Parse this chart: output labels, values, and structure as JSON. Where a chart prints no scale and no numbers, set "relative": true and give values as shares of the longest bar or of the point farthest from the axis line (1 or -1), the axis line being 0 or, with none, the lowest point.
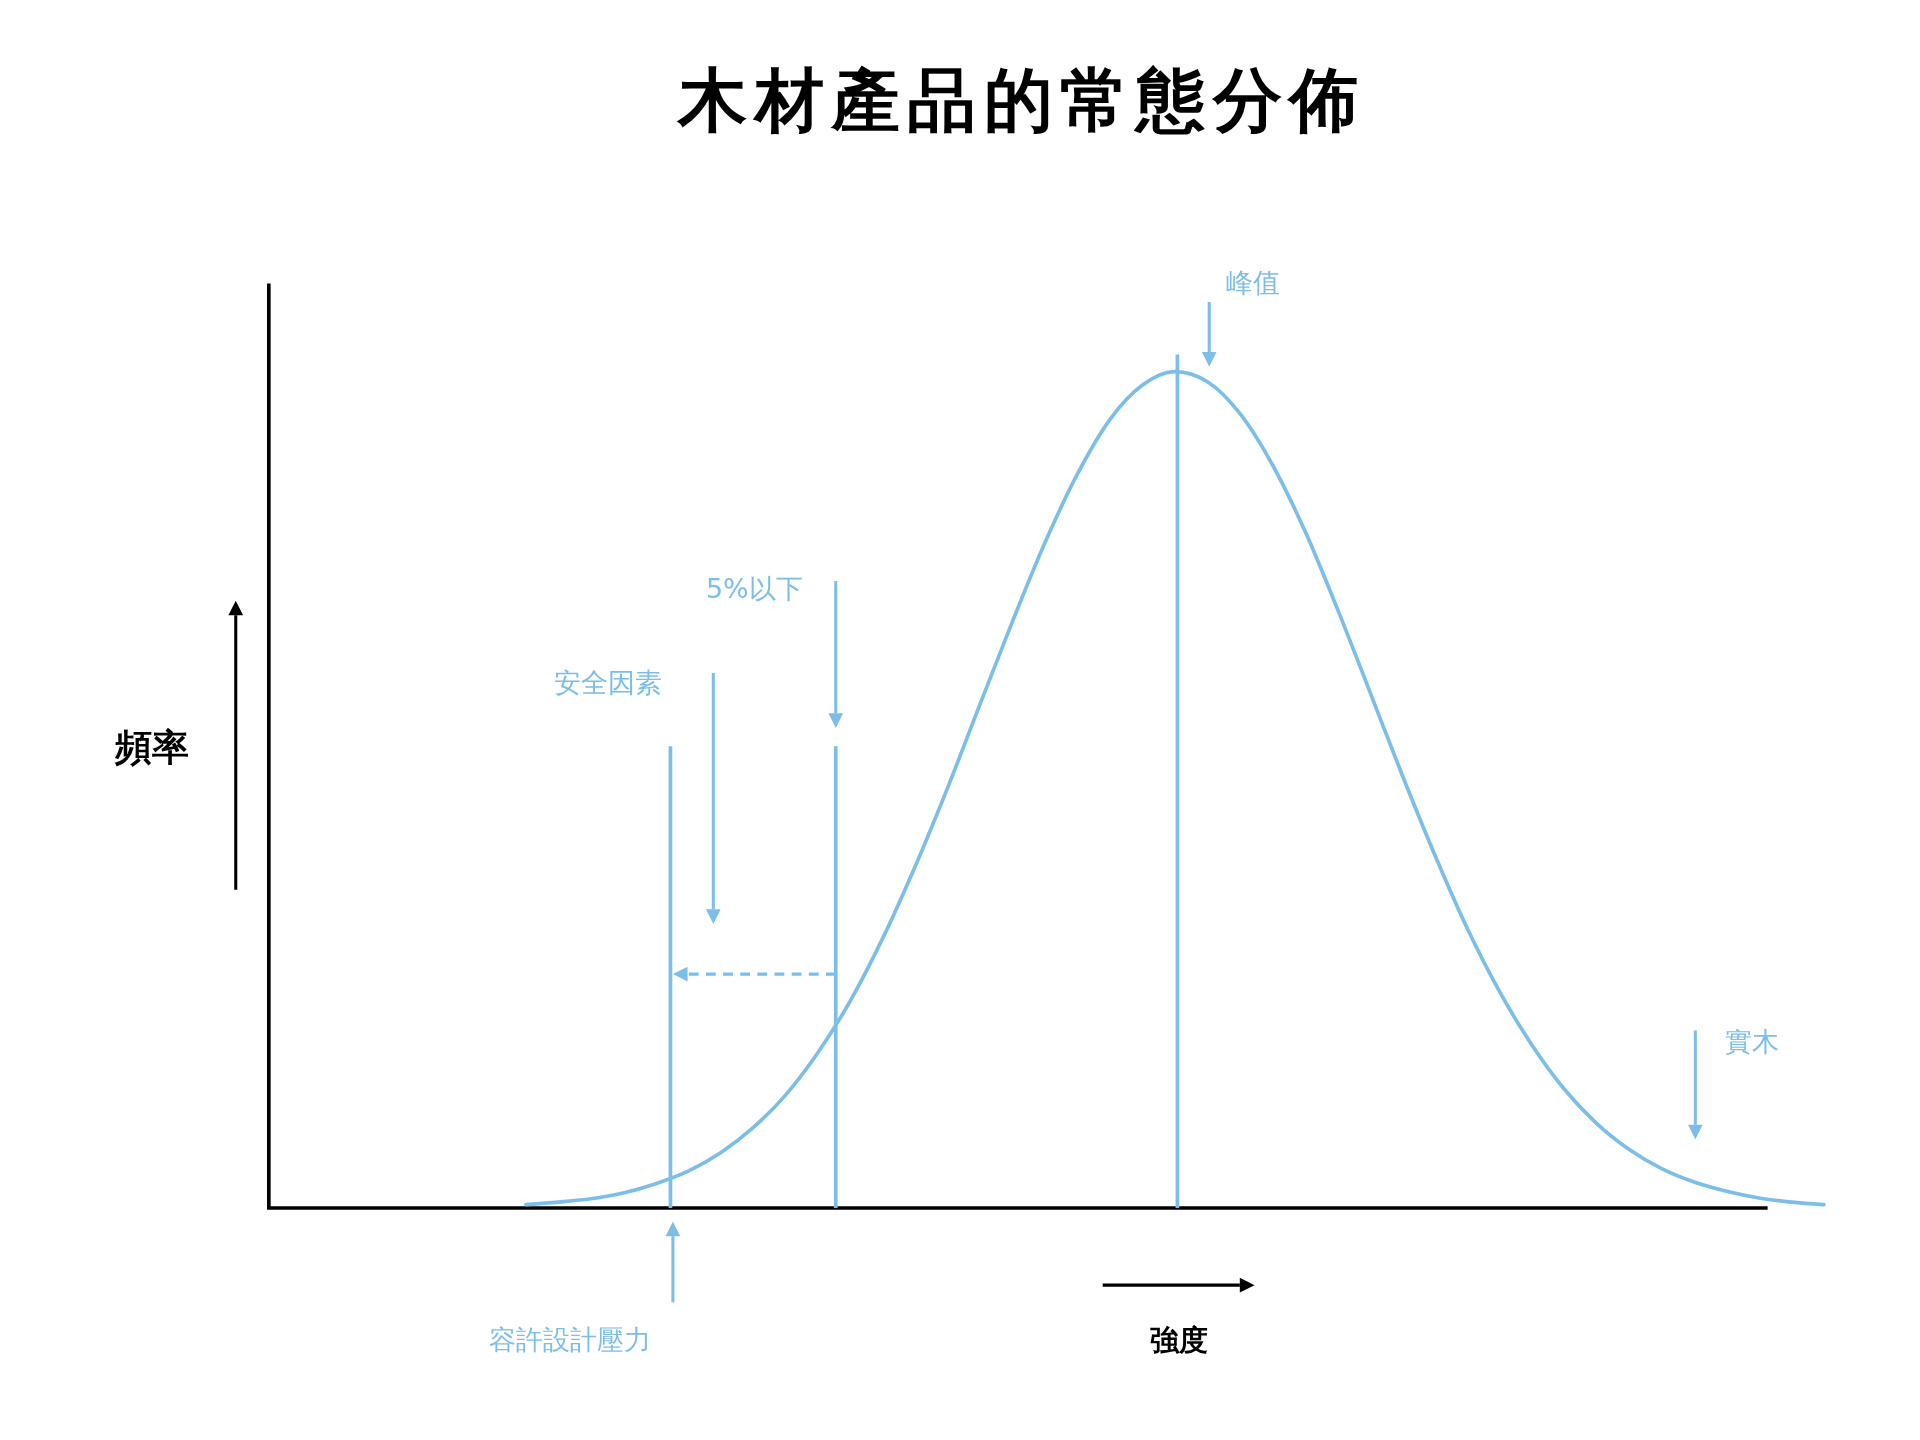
{
  "chart_data": {
    "type": "line",
    "title": "木材產品的常態分佈",
    "xlabel": "強度",
    "relative": true,
    "grid": false,
    "marker": "none",
    "line_style": "solid",
    "categories": [
      null,
      null,
      null,
      null,
      null,
      null,
      null,
      null,
      null,
      null,
      null,
      null,
      null,
      null,
      null,
      null,
      null,
      null,
      null,
      null,
      null,
      null,
      null,
      null,
      null,
      null,
      null,
      null,
      null,
      null,
      null,
      null,
      null,
      null,
      null,
      null,
      null,
      null,
      null,
      null,
      null
    ],
    "series": [
      {
        "color": "#7dbde9",
        "values": [
          0.004,
          0.007,
          0.011,
          0.018,
          0.029,
          0.044,
          0.066,
          0.096,
          0.135,
          0.186,
          0.248,
          0.323,
          0.409,
          0.503,
          0.603,
          0.702,
          0.796,
          0.878,
          0.943,
          0.984,
          1,
          0.988,
          0.95,
          0.889,
          0.81,
          0.717,
          0.618,
          0.518,
          0.423,
          0.335,
          0.259,
          0.195,
          0.142,
          0.101,
          0.07,
          0.047,
          0.031,
          0.02,
          0.012,
          0.007,
          0.004
        ]
      }
    ],
    "annotations": [
      "峰值",
      "5%以下",
      "安全因素",
      "容許設計壓力",
      "實木",
      "頻率"
    ]
  }
}
